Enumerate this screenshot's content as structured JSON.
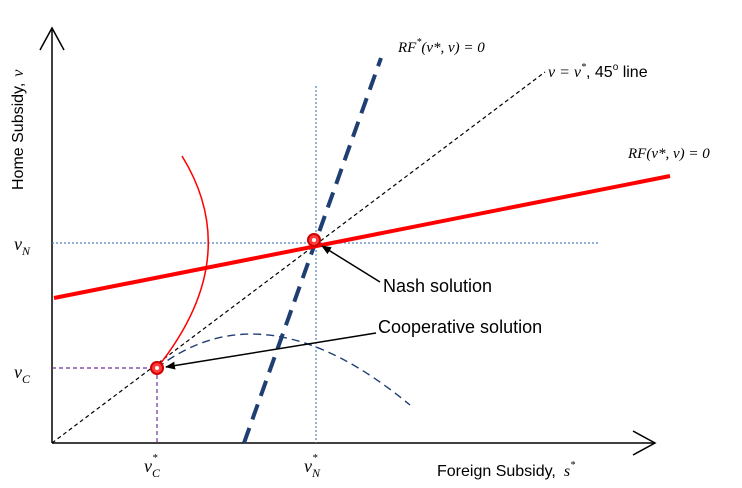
{
  "axes": {
    "x_label": "Foreign Subsidy,",
    "x_symbol": "s",
    "y_label": "Home Subsidy,",
    "y_symbol": "v",
    "star": "*"
  },
  "ticks": {
    "y_nash_base": "v",
    "y_nash_sub": "N",
    "y_coop_base": "v",
    "y_coop_sub": "C",
    "x_coop_base": "v",
    "x_coop_sub": "C",
    "x_nash_base": "v",
    "x_nash_sub": "N",
    "star": "*"
  },
  "curves": {
    "foreign_rf_label": "RF",
    "foreign_rf_args": "(v*, v) = 0",
    "home_rf_label": "RF",
    "home_rf_args": "(v*, v) = 0",
    "diag_label_math": "v = v",
    "diag_label_text": ", 45",
    "diag_label_deg": "o",
    "diag_label_line": " line"
  },
  "annotations": {
    "nash": "Nash solution",
    "coop": "Cooperative solution"
  },
  "colors": {
    "home_rf": "#ff0000",
    "foreign_rf": "#1f3f73",
    "dotted_guides": "#4f81bd",
    "coop_guides": "#7030a0",
    "arc": "#ff0000",
    "dashed_arc": "#1f3f73",
    "axis": "#000000"
  }
}
